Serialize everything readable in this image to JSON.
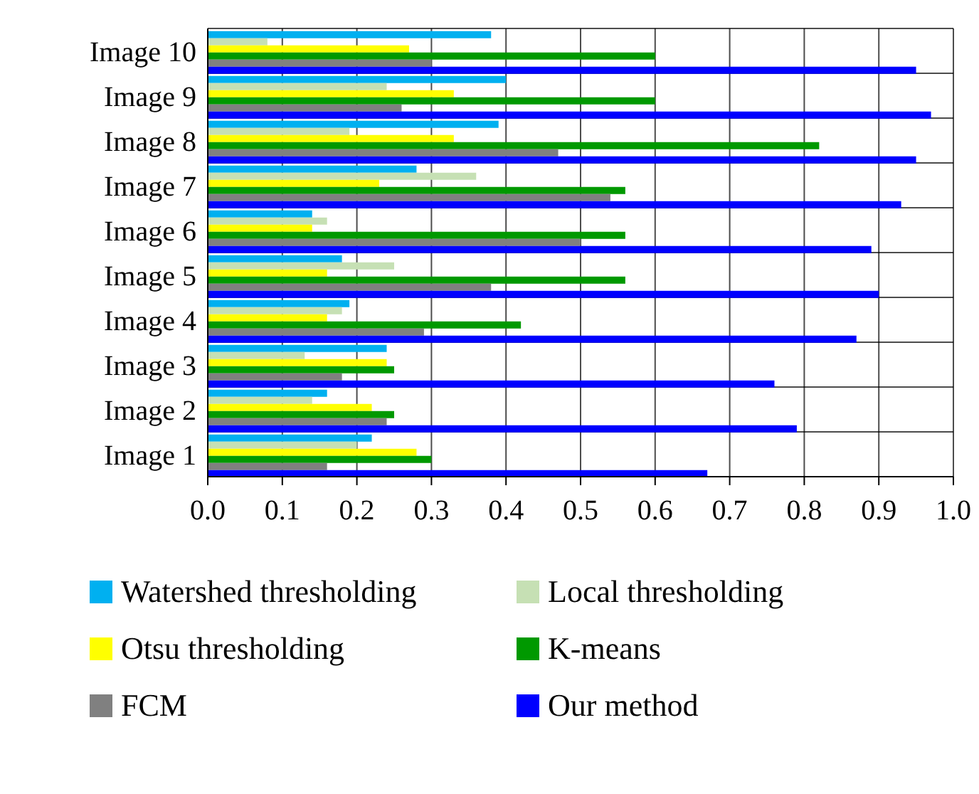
{
  "chart_data": {
    "type": "bar",
    "orientation": "horizontal",
    "categories": [
      "Image 10",
      "Image 9",
      "Image 8",
      "Image 7",
      "Image 6",
      "Image 5",
      "Image 4",
      "Image 3",
      "Image 2",
      "Image 1"
    ],
    "series": [
      {
        "name": "Watershed thresholding",
        "color": "#00b0f0",
        "values": [
          0.38,
          0.4,
          0.39,
          0.28,
          0.14,
          0.18,
          0.19,
          0.24,
          0.16,
          0.22
        ]
      },
      {
        "name": "Local thresholding",
        "color": "#c6e0b4",
        "values": [
          0.08,
          0.24,
          0.19,
          0.36,
          0.16,
          0.25,
          0.18,
          0.13,
          0.14,
          0.2
        ]
      },
      {
        "name": "Otsu thresholding",
        "color": "#ffff00",
        "values": [
          0.27,
          0.33,
          0.33,
          0.23,
          0.14,
          0.16,
          0.16,
          0.24,
          0.22,
          0.28
        ]
      },
      {
        "name": "K-means",
        "color": "#009900",
        "values": [
          0.6,
          0.6,
          0.82,
          0.56,
          0.56,
          0.56,
          0.42,
          0.25,
          0.25,
          0.3
        ]
      },
      {
        "name": "FCM",
        "color": "#808080",
        "values": [
          0.3,
          0.26,
          0.47,
          0.54,
          0.5,
          0.38,
          0.29,
          0.18,
          0.24,
          0.16
        ]
      },
      {
        "name": "Our method",
        "color": "#0000ff",
        "values": [
          0.95,
          0.97,
          0.95,
          0.93,
          0.89,
          0.9,
          0.87,
          0.76,
          0.79,
          0.67
        ]
      }
    ],
    "xlim": [
      0,
      1
    ],
    "xticks": [
      {
        "value": 0,
        "label": "0.0"
      },
      0.1,
      0.2,
      0.3,
      0.4,
      0.5,
      0.6,
      0.7,
      0.8,
      0.9,
      {
        "value": 1,
        "label": "1.0"
      }
    ],
    "grid": true,
    "legend": "bottom"
  }
}
